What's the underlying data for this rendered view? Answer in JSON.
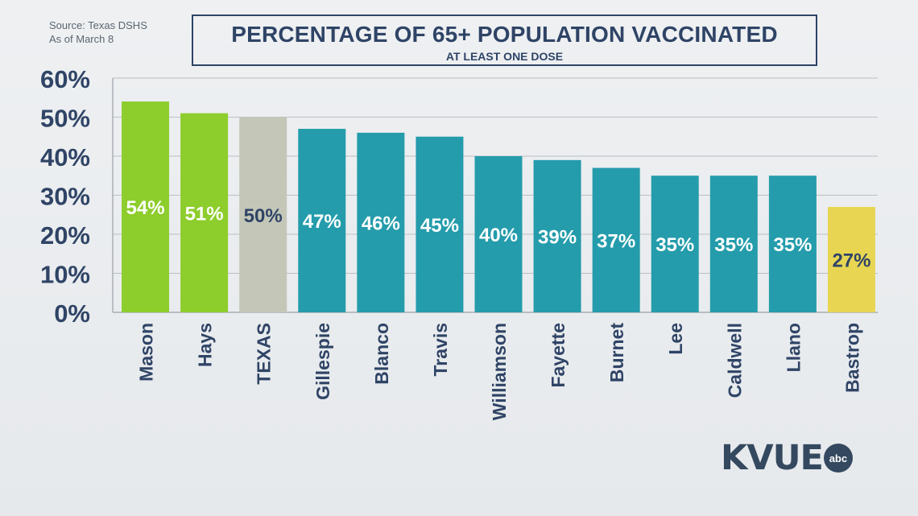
{
  "source": {
    "line1": "Source: Texas DSHS",
    "line2": "As of March 8"
  },
  "logo": {
    "text": "KVUE",
    "abc": "abc"
  },
  "colors": {
    "green": "#8dcd2c",
    "gray": "#c4c7b8",
    "teal": "#249cab",
    "yellow": "#e8d653",
    "axis_text": "#2f4466"
  },
  "chart_data": {
    "type": "bar",
    "title": "PERCENTAGE OF 65+ POPULATION VACCINATED",
    "subtitle": "AT LEAST ONE DOSE",
    "xlabel": "",
    "ylabel": "",
    "ylim": [
      0,
      60
    ],
    "yticks": [
      "0%",
      "10%",
      "20%",
      "30%",
      "40%",
      "50%",
      "60%"
    ],
    "grid": true,
    "categories": [
      "Mason",
      "Hays",
      "TEXAS",
      "Gillespie",
      "Blanco",
      "Travis",
      "Williamson",
      "Fayette",
      "Burnet",
      "Lee",
      "Caldwell",
      "Llano",
      "Bastrop"
    ],
    "values": [
      54,
      51,
      50,
      47,
      46,
      45,
      40,
      39,
      37,
      35,
      35,
      35,
      27
    ],
    "labels": [
      "54%",
      "51%",
      "50%",
      "47%",
      "46%",
      "45%",
      "40%",
      "39%",
      "37%",
      "35%",
      "35%",
      "35%",
      "27%"
    ],
    "bar_colors": [
      "#8dcd2c",
      "#8dcd2c",
      "#c4c7b8",
      "#249cab",
      "#249cab",
      "#249cab",
      "#249cab",
      "#249cab",
      "#249cab",
      "#249cab",
      "#249cab",
      "#249cab",
      "#e8d653"
    ],
    "label_colors": [
      "#ffffff",
      "#ffffff",
      "#2f4466",
      "#ffffff",
      "#ffffff",
      "#ffffff",
      "#ffffff",
      "#ffffff",
      "#ffffff",
      "#ffffff",
      "#ffffff",
      "#ffffff",
      "#2f4466"
    ]
  }
}
